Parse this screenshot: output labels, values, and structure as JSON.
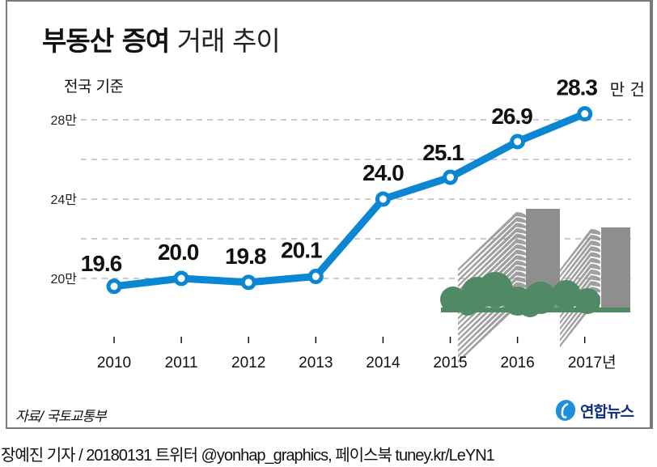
{
  "title": {
    "bold": "부동산 증여",
    "light": "거래 추이"
  },
  "subtitle": "전국 기준",
  "source": "자료/ 국토교통부",
  "logo": {
    "text": "연합뉴스",
    "icon": "yonhap-logo-icon"
  },
  "credit": "장예진 기자 / 20180131 트위터 @yonhap_graphics, 페이스북 tuney.kr/LeYN1",
  "colors": {
    "line": "#0a86d2",
    "grid": "#9a9a9a",
    "frame": "#7a7a7a",
    "tree": "#4f8a65",
    "building": "#8e8e8e"
  },
  "illustration": "apartment-buildings-with-trees",
  "chart_data": {
    "type": "line",
    "title": "부동산 증여 거래 추이",
    "subtitle": "전국 기준",
    "x": [
      "2010",
      "2011",
      "2012",
      "2013",
      "2014",
      "2015",
      "2016",
      "2017"
    ],
    "x_tick_labels": [
      "2010",
      "2011",
      "2012",
      "2013",
      "2014",
      "2015",
      "2016",
      "2017년"
    ],
    "series": [
      {
        "name": "증여 거래",
        "values": [
          19.6,
          20.0,
          19.8,
          20.1,
          24.0,
          25.1,
          26.9,
          28.3
        ]
      }
    ],
    "data_labels": [
      "19.6",
      "20.0",
      "19.8",
      "20.1",
      "24.0",
      "25.1",
      "26.9",
      "28.3"
    ],
    "last_label_unit": "만 건",
    "y_ticks": [
      20,
      22,
      24,
      26,
      28
    ],
    "y_tick_labels": [
      "20만",
      "",
      "24만",
      "",
      "28만"
    ],
    "ylim": [
      20,
      28
    ],
    "xlabel": "",
    "ylabel": "",
    "unit": "만 건",
    "grid": true,
    "legend": "none"
  }
}
